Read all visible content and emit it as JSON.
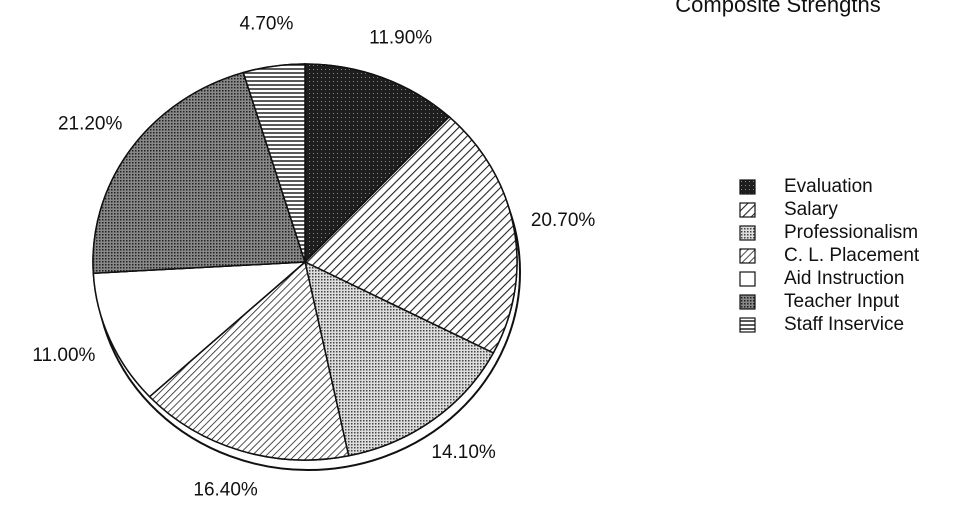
{
  "chart_data": {
    "type": "pie",
    "title": "Composite Strengths",
    "categories": [
      "Evaluation",
      "Salary",
      "Professionalism",
      "C. L. Placement",
      "Aid Instruction",
      "Teacher Input",
      "Staff Inservice"
    ],
    "values": [
      11.9,
      20.7,
      14.1,
      16.4,
      11.0,
      21.2,
      4.7
    ],
    "value_labels": [
      "11.90%",
      "20.70%",
      "14.10%",
      "16.40%",
      "11.00%",
      "21.20%",
      "4.70%"
    ],
    "colors": [
      "#1e1e1e",
      "#ffffff",
      "#c8c8c8",
      "#ffffff",
      "#ffffff",
      "#6a6a6a",
      "#ffffff"
    ],
    "legend": "right"
  }
}
